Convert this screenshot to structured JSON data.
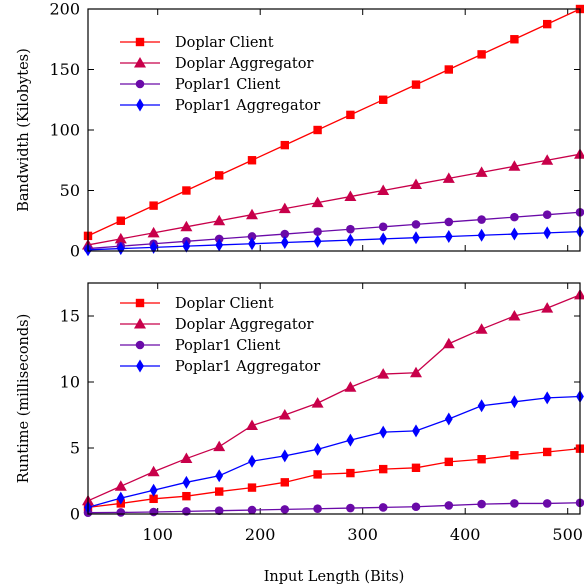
{
  "chart_data": [
    {
      "type": "line",
      "ylabel": "Bandwidth (Kilobytes)",
      "xlim": [
        32,
        512
      ],
      "ylim": [
        0,
        200
      ],
      "yticks": [
        0,
        50,
        100,
        150,
        200
      ],
      "grid": false,
      "legend_position": "top-left",
      "x": [
        32,
        64,
        96,
        128,
        160,
        192,
        224,
        256,
        288,
        320,
        352,
        384,
        416,
        448,
        480,
        512
      ],
      "series": [
        {
          "name": "Doplar Client",
          "color": "#ff0000",
          "marker": "square",
          "values": [
            12.5,
            25,
            37.5,
            50,
            62.5,
            75,
            87.5,
            100,
            112.5,
            125,
            137.5,
            150,
            162.5,
            175,
            187.5,
            200
          ]
        },
        {
          "name": "Doplar Aggregator",
          "color": "#c8004a",
          "marker": "triangle",
          "values": [
            5,
            10,
            15,
            20,
            25,
            30,
            35,
            40,
            45,
            50,
            55,
            60,
            65,
            70,
            75,
            80
          ]
        },
        {
          "name": "Poplar1 Client",
          "color": "#6a0aa8",
          "marker": "circle",
          "values": [
            2,
            4,
            6,
            8,
            10,
            12,
            14,
            16,
            18,
            20,
            22,
            24,
            26,
            28,
            30,
            32
          ]
        },
        {
          "name": "Poplar1 Aggregator",
          "color": "#0000ff",
          "marker": "diamond",
          "values": [
            1,
            2,
            3,
            4,
            5,
            6,
            7,
            8,
            9,
            10,
            11,
            12,
            13,
            14,
            15,
            16
          ]
        }
      ]
    },
    {
      "type": "line",
      "xlabel": "Input Length (Bits)",
      "ylabel": "Runtime (milliseconds)",
      "xlim": [
        32,
        512
      ],
      "ylim": [
        0,
        17.5
      ],
      "xticks": [
        100,
        200,
        300,
        400,
        500
      ],
      "yticks": [
        0,
        5,
        10,
        15
      ],
      "grid": false,
      "legend_position": "top-left",
      "x": [
        32,
        64,
        96,
        128,
        160,
        192,
        224,
        256,
        288,
        320,
        352,
        384,
        416,
        448,
        480,
        512
      ],
      "series": [
        {
          "name": "Doplar Client",
          "color": "#ff0000",
          "marker": "square",
          "values": [
            0.5,
            0.8,
            1.15,
            1.35,
            1.7,
            2.0,
            2.4,
            3.0,
            3.1,
            3.4,
            3.5,
            3.95,
            4.15,
            4.45,
            4.7,
            4.95
          ]
        },
        {
          "name": "Doplar Aggregator",
          "color": "#c8004a",
          "marker": "triangle",
          "values": [
            1.0,
            2.1,
            3.2,
            4.2,
            5.1,
            6.7,
            7.5,
            8.4,
            9.6,
            10.6,
            10.7,
            12.9,
            14.0,
            15.0,
            15.6,
            16.6
          ]
        },
        {
          "name": "Poplar1 Client",
          "color": "#6a0aa8",
          "marker": "circle",
          "values": [
            0.1,
            0.12,
            0.15,
            0.2,
            0.25,
            0.3,
            0.35,
            0.4,
            0.45,
            0.5,
            0.55,
            0.65,
            0.75,
            0.8,
            0.8,
            0.85
          ]
        },
        {
          "name": "Poplar1 Aggregator",
          "color": "#0000ff",
          "marker": "diamond",
          "values": [
            0.5,
            1.2,
            1.8,
            2.4,
            2.9,
            4.0,
            4.4,
            4.9,
            5.6,
            6.2,
            6.3,
            7.2,
            8.2,
            8.5,
            8.8,
            8.9
          ]
        }
      ]
    }
  ]
}
